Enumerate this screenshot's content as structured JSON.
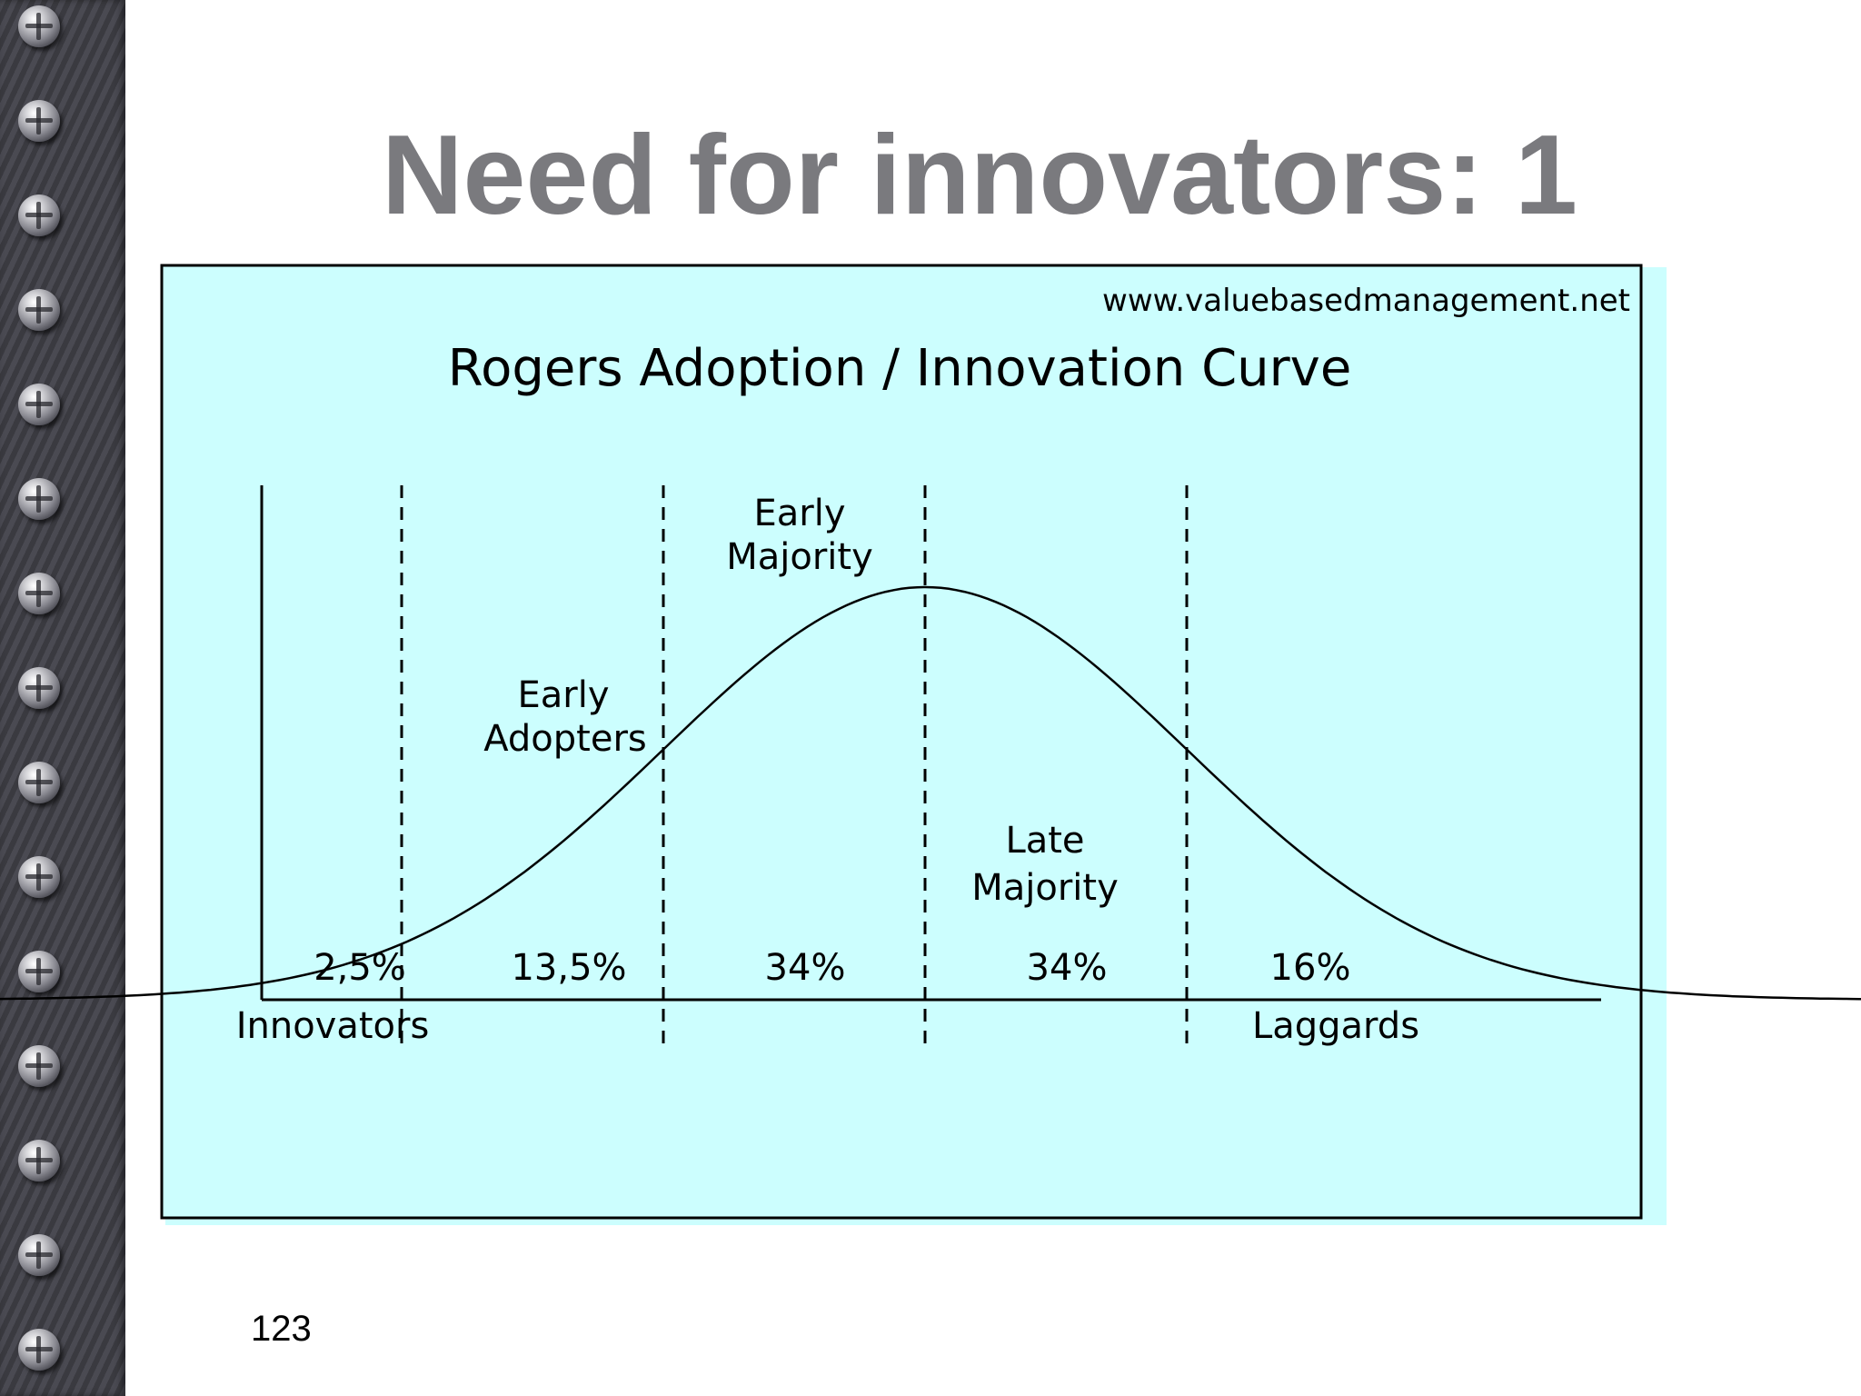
{
  "slide": {
    "title": "Need for innovators: 1",
    "page_number": "123"
  },
  "chart_data": {
    "type": "area",
    "watermark": "www.valuebasedmanagement.net",
    "title": "Rogers Adoption / Innovation Curve",
    "xlabel": "",
    "ylabel": "",
    "distribution": "normal",
    "xlim": [
      -3.6,
      3.6
    ],
    "boundaries_sd": [
      -2,
      -1,
      0,
      1
    ],
    "segments": [
      {
        "name": "Innovators",
        "percent_label": "2,5%"
      },
      {
        "name": "Early Adopters",
        "percent_label": "13,5%"
      },
      {
        "name": "Early Majority",
        "percent_label": "34%"
      },
      {
        "name": "Late Majority",
        "percent_label": "34%"
      },
      {
        "name": "Laggards",
        "percent_label": "16%"
      }
    ],
    "labels": {
      "innovators": "Innovators",
      "early_adopters": [
        "Early",
        "Adopters"
      ],
      "early_majority": [
        "Early",
        "Majority"
      ],
      "late_majority": [
        "Late",
        "Majority"
      ],
      "laggards": "Laggards"
    },
    "grid": false,
    "legend": "none",
    "colors": {
      "background": "#ccfefe",
      "line": "#000000"
    }
  }
}
